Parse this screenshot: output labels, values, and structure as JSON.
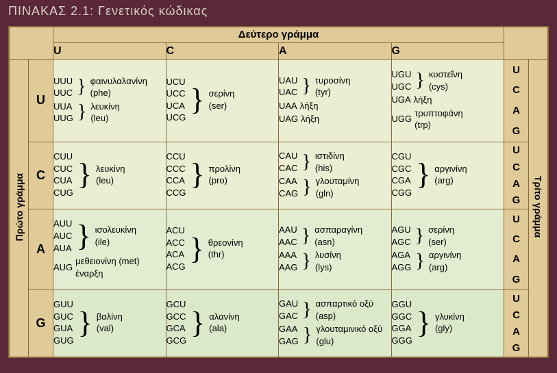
{
  "title": "ΠΙΝΑΚΑΣ 2.1: Γενετικός κώδικας",
  "top_header": "Δεύτερο γράμμα",
  "left_header": "Πρώτο γράμμα",
  "right_header": "Τρίτο γράμμα",
  "cols": {
    "u": "U",
    "c": "C",
    "a": "A",
    "g": "G"
  },
  "ucag": [
    "U",
    "C",
    "A",
    "G"
  ],
  "rows": {
    "U": {
      "U": [
        {
          "c": [
            "UUU",
            "UUC"
          ],
          "aa": "φαινυλαλανίνη",
          "ab": "(phe)"
        },
        {
          "c": [
            "UUA",
            "UUG"
          ],
          "aa": "λευκίνη",
          "ab": "(leu)"
        }
      ],
      "C": [
        {
          "c": [
            "UCU",
            "UCC",
            "UCA",
            "UCG"
          ],
          "aa": "σερίνη",
          "ab": "(ser)"
        }
      ],
      "A": [
        {
          "c": [
            "UAU",
            "UAC"
          ],
          "aa": "τυροσίνη",
          "ab": "(tyr)"
        },
        {
          "c": [
            "UAA"
          ],
          "aa": "λήξη"
        },
        {
          "c": [
            "UAG"
          ],
          "aa": "λήξη"
        }
      ],
      "G": [
        {
          "c": [
            "UGU",
            "UGC"
          ],
          "aa": "κυστεΐνη",
          "ab": "(cys)"
        },
        {
          "c": [
            "UGA"
          ],
          "aa": "λήξη"
        },
        {
          "c": [
            "UGG"
          ],
          "aa": "τρυπτοφάνη",
          "ab": "(trp)"
        }
      ]
    },
    "C": {
      "U": [
        {
          "c": [
            "CUU",
            "CUC",
            "CUA",
            "CUG"
          ],
          "aa": "λευκίνη",
          "ab": "(leu)"
        }
      ],
      "C": [
        {
          "c": [
            "CCU",
            "CCC",
            "CCA",
            "CCG"
          ],
          "aa": "προλίνη",
          "ab": "(pro)"
        }
      ],
      "A": [
        {
          "c": [
            "CAU",
            "CAC"
          ],
          "aa": "ιστιδίνη",
          "ab": "(his)"
        },
        {
          "c": [
            "CAA",
            "CAG"
          ],
          "aa": "γλουταμίνη",
          "ab": "(gln)"
        }
      ],
      "G": [
        {
          "c": [
            "CGU",
            "CGC",
            "CGA",
            "CGG"
          ],
          "aa": "αργινίνη",
          "ab": "(arg)"
        }
      ]
    },
    "A": {
      "U": [
        {
          "c": [
            "AUU",
            "AUC",
            "AUA"
          ],
          "aa": "ισολευκίνη",
          "ab": "(ile)"
        },
        {
          "c": [
            "AUG"
          ],
          "aa": "μεθειονίνη (met) έναρξη"
        }
      ],
      "C": [
        {
          "c": [
            "ACU",
            "ACC",
            "ACA",
            "ACG"
          ],
          "aa": "θρεονίνη",
          "ab": "(thr)"
        }
      ],
      "A": [
        {
          "c": [
            "AAU",
            "AAC"
          ],
          "aa": "ασπαραγίνη",
          "ab": "(asn)"
        },
        {
          "c": [
            "AAA",
            "AAG"
          ],
          "aa": "λυσίνη",
          "ab": "(lys)"
        }
      ],
      "G": [
        {
          "c": [
            "AGU",
            "AGC"
          ],
          "aa": "σερίνη",
          "ab": "(ser)"
        },
        {
          "c": [
            "AGA",
            "AGG"
          ],
          "aa": "αργινίνη",
          "ab": "(arg)"
        }
      ]
    },
    "G": {
      "U": [
        {
          "c": [
            "GUU",
            "GUC",
            "GUA",
            "GUG"
          ],
          "aa": "βαλίνη",
          "ab": "(val)"
        }
      ],
      "C": [
        {
          "c": [
            "GCU",
            "GCC",
            "GCA",
            "GCG"
          ],
          "aa": "αλανίνη",
          "ab": "(ala)"
        }
      ],
      "A": [
        {
          "c": [
            "GAU",
            "GAC"
          ],
          "aa": "ασπαρτικό οξύ",
          "ab": "(asp)"
        },
        {
          "c": [
            "GAA",
            "GAG"
          ],
          "aa": "γλουταμινικό οξύ",
          "ab": "(glu)"
        }
      ],
      "G": [
        {
          "c": [
            "GGU",
            "GGC",
            "GGA",
            "GGG"
          ],
          "aa": "γλυκίνη",
          "ab": "(gly)"
        }
      ]
    }
  },
  "colors": {
    "page": "#5a2838",
    "frame": "#d6c088",
    "header": "#e0cb98",
    "cell": "#eaeed2",
    "border": "#8a6a3a",
    "title": "#d8d0c8"
  }
}
